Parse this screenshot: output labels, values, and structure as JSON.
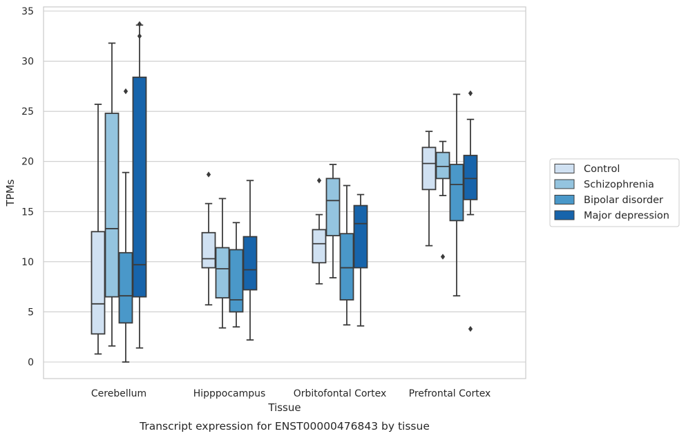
{
  "chart_data": {
    "type": "boxplot",
    "title": "",
    "caption": "Transcript expression for ENST00000476843 by tissue",
    "xlabel": "Tissue",
    "ylabel": "TPMs",
    "ylim": [
      -1.6,
      35.5
    ],
    "yticks": [
      0,
      5,
      10,
      15,
      20,
      25,
      30,
      35
    ],
    "grid": "horizontal",
    "legend_position": "right",
    "categories": [
      "Cerebellum",
      "Hipppocampus",
      "Orbitofontal Cortex",
      "Prefrontal Cortex"
    ],
    "series": [
      {
        "name": "Control",
        "color": "#d0e1f2",
        "boxes": [
          {
            "whisker_low": 0.8,
            "q1": 2.8,
            "median": 5.8,
            "q3": 13.0,
            "whisker_high": 25.7,
            "outliers": []
          },
          {
            "whisker_low": 5.7,
            "q1": 9.4,
            "median": 10.3,
            "q3": 12.9,
            "whisker_high": 15.8,
            "outliers": [
              18.7
            ]
          },
          {
            "whisker_low": 7.8,
            "q1": 9.9,
            "median": 11.8,
            "q3": 13.2,
            "whisker_high": 14.7,
            "outliers": [
              18.1
            ]
          },
          {
            "whisker_low": 11.6,
            "q1": 17.2,
            "median": 19.8,
            "q3": 21.4,
            "whisker_high": 23.0,
            "outliers": []
          }
        ]
      },
      {
        "name": "Schizophrenia",
        "color": "#94c4df",
        "boxes": [
          {
            "whisker_low": 1.6,
            "q1": 6.5,
            "median": 13.3,
            "q3": 24.8,
            "whisker_high": 31.8,
            "outliers": []
          },
          {
            "whisker_low": 3.4,
            "q1": 6.4,
            "median": 9.3,
            "q3": 11.4,
            "whisker_high": 16.3,
            "outliers": []
          },
          {
            "whisker_low": 8.4,
            "q1": 12.6,
            "median": 16.1,
            "q3": 18.3,
            "whisker_high": 19.7,
            "outliers": []
          },
          {
            "whisker_low": 16.6,
            "q1": 18.3,
            "median": 19.5,
            "q3": 20.9,
            "whisker_high": 22.0,
            "outliers": [
              10.5
            ]
          }
        ]
      },
      {
        "name": "Bipolar disorder",
        "color": "#4a98c9",
        "boxes": [
          {
            "whisker_low": 0.0,
            "q1": 3.9,
            "median": 6.6,
            "q3": 10.9,
            "whisker_high": 18.9,
            "outliers": [
              27.0
            ]
          },
          {
            "whisker_low": 3.5,
            "q1": 5.0,
            "median": 6.2,
            "q3": 11.2,
            "whisker_high": 13.9,
            "outliers": []
          },
          {
            "whisker_low": 3.7,
            "q1": 6.2,
            "median": 9.4,
            "q3": 12.8,
            "whisker_high": 17.6,
            "outliers": []
          },
          {
            "whisker_low": 6.6,
            "q1": 14.1,
            "median": 17.7,
            "q3": 19.7,
            "whisker_high": 26.7,
            "outliers": []
          }
        ]
      },
      {
        "name": "Major depression",
        "color": "#1764ab",
        "boxes": [
          {
            "whisker_low": 1.4,
            "q1": 6.5,
            "median": 9.7,
            "q3": 28.4,
            "whisker_high": 33.6,
            "outliers": [
              33.7,
              32.5
            ]
          },
          {
            "whisker_low": 2.2,
            "q1": 7.2,
            "median": 9.2,
            "q3": 12.5,
            "whisker_high": 18.1,
            "outliers": []
          },
          {
            "whisker_low": 3.6,
            "q1": 9.4,
            "median": 13.8,
            "q3": 15.6,
            "whisker_high": 16.7,
            "outliers": []
          },
          {
            "whisker_low": 14.7,
            "q1": 16.2,
            "median": 18.3,
            "q3": 20.6,
            "whisker_high": 24.2,
            "outliers": [
              3.3,
              26.8
            ]
          }
        ]
      }
    ]
  }
}
